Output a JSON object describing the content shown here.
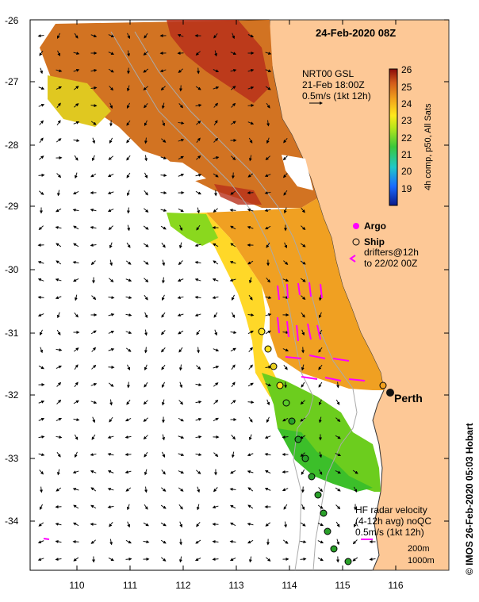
{
  "map": {
    "date_title": "24-Feb-2020 08Z",
    "x_ticks": [
      "110",
      "111",
      "112",
      "113",
      "114",
      "115",
      "116"
    ],
    "y_ticks": [
      "-26",
      "-27",
      "-28",
      "-29",
      "-30",
      "-31",
      "-32",
      "-33",
      "-34"
    ],
    "city_label": "Perth",
    "credit": "© IMOS 26-Feb-2020 05:03 Hobart"
  },
  "nrt_legend": {
    "line1": "NRT00 GSL",
    "line2": "21-Feb 18:00Z",
    "line3": "0.5m/s (1kt 12h)"
  },
  "colorbar": {
    "label": "4h comp, p50, All Sats",
    "ticks": [
      "26",
      "25",
      "24",
      "23",
      "22",
      "21",
      "20",
      "19"
    ]
  },
  "key_legend": {
    "argo": "Argo",
    "ship": "Ship",
    "drifters_line1": "drifters@12h",
    "drifters_line2": "to 22/02 00Z"
  },
  "hf_legend": {
    "line1": "HF radar velocity",
    "line2": "(4-12h avg) noQC",
    "line3": "0.5m/s (1kt 12h)"
  },
  "depth_legend": {
    "line1": "200m",
    "line2": "1000m"
  },
  "colors": {
    "land": "#fdc896",
    "sst_high": "#c0401a",
    "sst_mid": "#e08a20",
    "sst_low": "#ffd21e",
    "sst_cool": "#6fd21a",
    "drifter": "#ff00ff",
    "ship_fill": "#2aa02a"
  }
}
